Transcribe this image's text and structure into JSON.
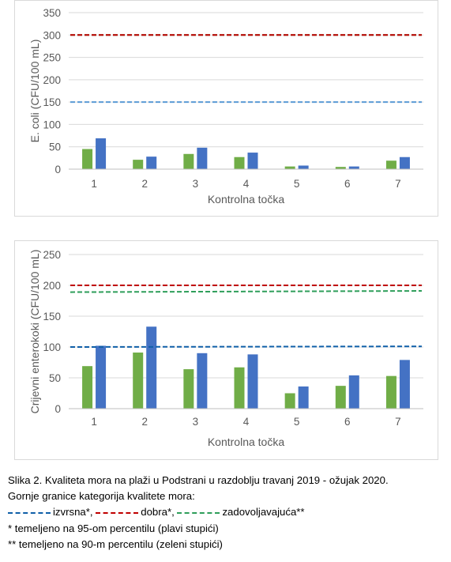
{
  "chart_data": [
    {
      "type": "bar",
      "title": "",
      "xlabel": "Kontrolna točka",
      "ylabel": "E. coli (CFU/100 mL)",
      "categories": [
        "1",
        "2",
        "3",
        "4",
        "5",
        "6",
        "7"
      ],
      "ylim": [
        0,
        350
      ],
      "yticks": [
        0,
        50,
        100,
        150,
        200,
        250,
        300,
        350
      ],
      "series": [
        {
          "color": "#70ad47",
          "values": [
            45,
            21,
            34,
            27,
            6,
            5,
            19
          ]
        },
        {
          "color": "#4472c4",
          "values": [
            69,
            28,
            48,
            37,
            8,
            6,
            27
          ]
        }
      ],
      "reference_lines": [
        {
          "value": 300,
          "color": "#2e9e5a"
        },
        {
          "value": 300,
          "color": "#c00000"
        },
        {
          "value": 150,
          "color": "#5b9bd5"
        }
      ],
      "grid": true
    },
    {
      "type": "bar",
      "title": "",
      "xlabel": "Kontrolna točka",
      "ylabel": "Crijevni enterokoki (CFU/100 mL)",
      "categories": [
        "1",
        "2",
        "3",
        "4",
        "5",
        "6",
        "7"
      ],
      "ylim": [
        0,
        250
      ],
      "yticks": [
        0,
        50,
        100,
        150,
        200,
        250
      ],
      "series": [
        {
          "color": "#70ad47",
          "values": [
            69,
            91,
            64,
            67,
            25,
            37,
            53
          ]
        },
        {
          "color": "#4472c4",
          "values": [
            102,
            133,
            90,
            88,
            36,
            54,
            79
          ]
        }
      ],
      "reference_lines": [
        {
          "value": 200,
          "color": "#c00000"
        },
        {
          "value": 189,
          "value_end": 191,
          "color": "#2e9e5a"
        },
        {
          "value": 100,
          "value_end": 101,
          "color": "#0f5fa8"
        }
      ],
      "grid": true
    }
  ],
  "caption": {
    "line1": "Slika 2. Kvaliteta mora na plaži u Podstrani u razdoblju travanj 2019 - ožujak 2020.",
    "line2": "Gornje granice kategorija kvalitete mora:",
    "legend": [
      {
        "label": "izvrsna*,",
        "color": "#0f5fa8"
      },
      {
        "label": "dobra*,",
        "color": "#c00000"
      },
      {
        "label": "zadovoljavajuća**",
        "color": "#2e9e5a"
      }
    ],
    "note1": "* temeljeno  na 95-om percentilu (plavi stupići)",
    "note2": "** temeljeno  na 90-m percentilu (zeleni stupići)"
  }
}
